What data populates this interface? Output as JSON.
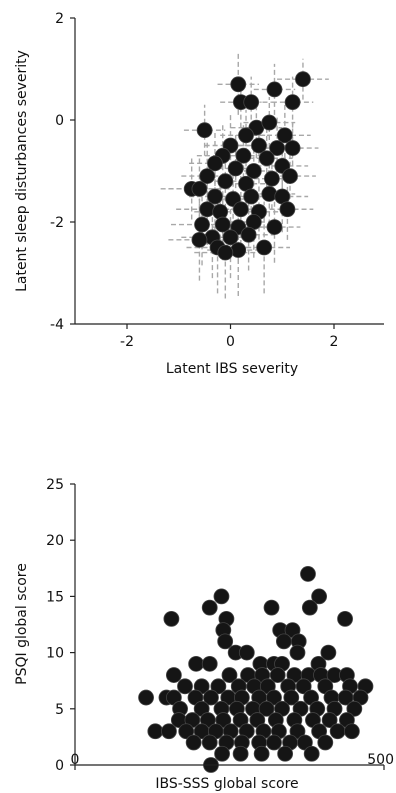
{
  "chart_data": [
    {
      "type": "scatter",
      "xlabel": "Latent IBS severity",
      "ylabel": "Latent sleep disturbances severity",
      "xlim": [
        -3,
        3
      ],
      "ylim": [
        -4,
        2
      ],
      "xticks": [
        -2,
        0,
        2
      ],
      "yticks": [
        -4,
        -2,
        0,
        2
      ],
      "error_bars": "dashed, grey, x and y",
      "points": [
        {
          "x": 0.15,
          "y": 0.7,
          "xe": 0.4,
          "ye": 0.6
        },
        {
          "x": 0.85,
          "y": 0.6,
          "xe": 0.4,
          "ye": 0.5
        },
        {
          "x": 1.4,
          "y": 0.8,
          "xe": 0.5,
          "ye": 0.4
        },
        {
          "x": 0.2,
          "y": 0.35,
          "xe": 0.4,
          "ye": 0.5
        },
        {
          "x": 0.4,
          "y": 0.35,
          "xe": 0.4,
          "ye": 0.5
        },
        {
          "x": 1.2,
          "y": 0.35,
          "xe": 0.4,
          "ye": 0.5
        },
        {
          "x": 0.5,
          "y": -0.15,
          "xe": 0.5,
          "ye": 0.6
        },
        {
          "x": 0.75,
          "y": -0.05,
          "xe": 0.5,
          "ye": 0.5
        },
        {
          "x": -0.5,
          "y": -0.2,
          "xe": 0.4,
          "ye": 0.5
        },
        {
          "x": 0.3,
          "y": -0.3,
          "xe": 0.5,
          "ye": 0.5
        },
        {
          "x": 1.05,
          "y": -0.3,
          "xe": 0.5,
          "ye": 0.6
        },
        {
          "x": 0.0,
          "y": -0.5,
          "xe": 0.5,
          "ye": 0.6
        },
        {
          "x": 0.55,
          "y": -0.5,
          "xe": 0.4,
          "ye": 0.5
        },
        {
          "x": 0.9,
          "y": -0.55,
          "xe": 0.5,
          "ye": 0.6
        },
        {
          "x": 1.2,
          "y": -0.55,
          "xe": 0.5,
          "ye": 0.5
        },
        {
          "x": -0.15,
          "y": -0.7,
          "xe": 0.5,
          "ye": 0.6
        },
        {
          "x": 0.25,
          "y": -0.7,
          "xe": 0.5,
          "ye": 0.6
        },
        {
          "x": 0.7,
          "y": -0.75,
          "xe": 0.5,
          "ye": 0.6
        },
        {
          "x": -0.3,
          "y": -0.85,
          "xe": 0.5,
          "ye": 0.6
        },
        {
          "x": 0.1,
          "y": -0.95,
          "xe": 0.5,
          "ye": 0.7
        },
        {
          "x": 0.45,
          "y": -1.0,
          "xe": 0.5,
          "ye": 0.6
        },
        {
          "x": 1.0,
          "y": -0.9,
          "xe": 0.5,
          "ye": 0.6
        },
        {
          "x": -0.45,
          "y": -1.1,
          "xe": 0.5,
          "ye": 0.7
        },
        {
          "x": -0.1,
          "y": -1.2,
          "xe": 0.5,
          "ye": 0.7
        },
        {
          "x": 0.3,
          "y": -1.25,
          "xe": 0.5,
          "ye": 0.6
        },
        {
          "x": 0.8,
          "y": -1.15,
          "xe": 0.5,
          "ye": 0.6
        },
        {
          "x": 1.15,
          "y": -1.1,
          "xe": 0.5,
          "ye": 0.6
        },
        {
          "x": -0.75,
          "y": -1.35,
          "xe": 0.6,
          "ye": 0.6
        },
        {
          "x": -0.6,
          "y": -1.35,
          "xe": 0.6,
          "ye": 0.6
        },
        {
          "x": -0.3,
          "y": -1.5,
          "xe": 0.5,
          "ye": 0.7
        },
        {
          "x": 0.05,
          "y": -1.55,
          "xe": 0.5,
          "ye": 0.7
        },
        {
          "x": 0.4,
          "y": -1.5,
          "xe": 0.5,
          "ye": 0.6
        },
        {
          "x": 0.75,
          "y": -1.45,
          "xe": 0.5,
          "ye": 0.6
        },
        {
          "x": 1.0,
          "y": -1.5,
          "xe": 0.5,
          "ye": 0.7
        },
        {
          "x": -0.45,
          "y": -1.75,
          "xe": 0.6,
          "ye": 0.7
        },
        {
          "x": -0.2,
          "y": -1.8,
          "xe": 0.5,
          "ye": 0.7
        },
        {
          "x": 0.2,
          "y": -1.75,
          "xe": 0.5,
          "ye": 0.7
        },
        {
          "x": 0.55,
          "y": -1.8,
          "xe": 0.5,
          "ye": 0.7
        },
        {
          "x": 1.1,
          "y": -1.75,
          "xe": 0.5,
          "ye": 0.6
        },
        {
          "x": -0.55,
          "y": -2.05,
          "xe": 0.6,
          "ye": 0.8
        },
        {
          "x": -0.15,
          "y": -2.05,
          "xe": 0.5,
          "ye": 0.7
        },
        {
          "x": 0.15,
          "y": -2.1,
          "xe": 0.5,
          "ye": 0.7
        },
        {
          "x": 0.45,
          "y": -2.0,
          "xe": 0.5,
          "ye": 0.7
        },
        {
          "x": 0.85,
          "y": -2.1,
          "xe": 0.5,
          "ye": 0.7
        },
        {
          "x": -0.35,
          "y": -2.3,
          "xe": 0.6,
          "ye": 0.8
        },
        {
          "x": 0.0,
          "y": -2.3,
          "xe": 0.5,
          "ye": 0.8
        },
        {
          "x": 0.35,
          "y": -2.25,
          "xe": 0.5,
          "ye": 0.7
        },
        {
          "x": -0.6,
          "y": -2.35,
          "xe": 0.6,
          "ye": 0.8
        },
        {
          "x": -0.25,
          "y": -2.5,
          "xe": 0.6,
          "ye": 0.9
        },
        {
          "x": 0.15,
          "y": -2.55,
          "xe": 0.6,
          "ye": 0.9
        },
        {
          "x": 0.65,
          "y": -2.5,
          "xe": 0.5,
          "ye": 0.9
        },
        {
          "x": -0.1,
          "y": -2.6,
          "xe": 0.6,
          "ye": 0.9
        }
      ]
    },
    {
      "type": "scatter",
      "xlabel": "IBS-SSS global score",
      "ylabel": "PSQI global score",
      "xlim": [
        0,
        500
      ],
      "ylim": [
        0,
        25
      ],
      "xticks": [
        0,
        500
      ],
      "yticks": [
        0,
        5,
        10,
        15,
        20,
        25
      ],
      "points": [
        [
          237,
          15
        ],
        [
          377,
          17
        ],
        [
          156,
          13
        ],
        [
          218,
          14
        ],
        [
          318,
          14
        ],
        [
          395,
          15
        ],
        [
          437,
          13
        ],
        [
          245,
          13
        ],
        [
          240,
          12
        ],
        [
          332,
          12
        ],
        [
          352,
          12
        ],
        [
          380,
          14
        ],
        [
          338,
          11
        ],
        [
          362,
          11
        ],
        [
          243,
          11
        ],
        [
          196,
          9
        ],
        [
          218,
          9
        ],
        [
          260,
          10
        ],
        [
          278,
          10
        ],
        [
          300,
          9
        ],
        [
          322,
          9
        ],
        [
          335,
          9
        ],
        [
          360,
          10
        ],
        [
          394,
          9
        ],
        [
          410,
          10
        ],
        [
          160,
          8
        ],
        [
          250,
          8
        ],
        [
          280,
          8
        ],
        [
          303,
          8
        ],
        [
          328,
          8
        ],
        [
          355,
          8
        ],
        [
          378,
          8
        ],
        [
          398,
          8
        ],
        [
          420,
          8
        ],
        [
          440,
          8
        ],
        [
          178,
          7
        ],
        [
          205,
          7
        ],
        [
          232,
          7
        ],
        [
          265,
          7
        ],
        [
          290,
          7
        ],
        [
          312,
          7
        ],
        [
          345,
          7
        ],
        [
          370,
          7
        ],
        [
          405,
          7
        ],
        [
          445,
          7
        ],
        [
          470,
          7
        ],
        [
          115,
          6
        ],
        [
          148,
          6
        ],
        [
          160,
          6
        ],
        [
          195,
          6
        ],
        [
          220,
          6
        ],
        [
          248,
          6
        ],
        [
          270,
          6
        ],
        [
          298,
          6
        ],
        [
          322,
          6
        ],
        [
          350,
          6
        ],
        [
          382,
          6
        ],
        [
          415,
          6
        ],
        [
          438,
          6
        ],
        [
          462,
          6
        ],
        [
          170,
          5
        ],
        [
          205,
          5
        ],
        [
          237,
          5
        ],
        [
          262,
          5
        ],
        [
          288,
          5
        ],
        [
          310,
          5
        ],
        [
          335,
          5
        ],
        [
          365,
          5
        ],
        [
          392,
          5
        ],
        [
          420,
          5
        ],
        [
          452,
          5
        ],
        [
          168,
          4
        ],
        [
          190,
          4
        ],
        [
          215,
          4
        ],
        [
          240,
          4
        ],
        [
          268,
          4
        ],
        [
          295,
          4
        ],
        [
          325,
          4
        ],
        [
          355,
          4
        ],
        [
          385,
          4
        ],
        [
          412,
          4
        ],
        [
          440,
          4
        ],
        [
          130,
          3
        ],
        [
          152,
          3
        ],
        [
          180,
          3
        ],
        [
          205,
          3
        ],
        [
          228,
          3
        ],
        [
          252,
          3
        ],
        [
          278,
          3
        ],
        [
          305,
          3
        ],
        [
          330,
          3
        ],
        [
          360,
          3
        ],
        [
          395,
          3
        ],
        [
          425,
          3
        ],
        [
          448,
          3
        ],
        [
          192,
          2
        ],
        [
          218,
          2
        ],
        [
          245,
          2
        ],
        [
          270,
          2
        ],
        [
          298,
          2
        ],
        [
          322,
          2
        ],
        [
          348,
          2
        ],
        [
          372,
          2
        ],
        [
          405,
          2
        ],
        [
          238,
          1
        ],
        [
          268,
          1
        ],
        [
          302,
          1
        ],
        [
          340,
          1
        ],
        [
          383,
          1
        ],
        [
          220,
          0
        ]
      ]
    }
  ]
}
